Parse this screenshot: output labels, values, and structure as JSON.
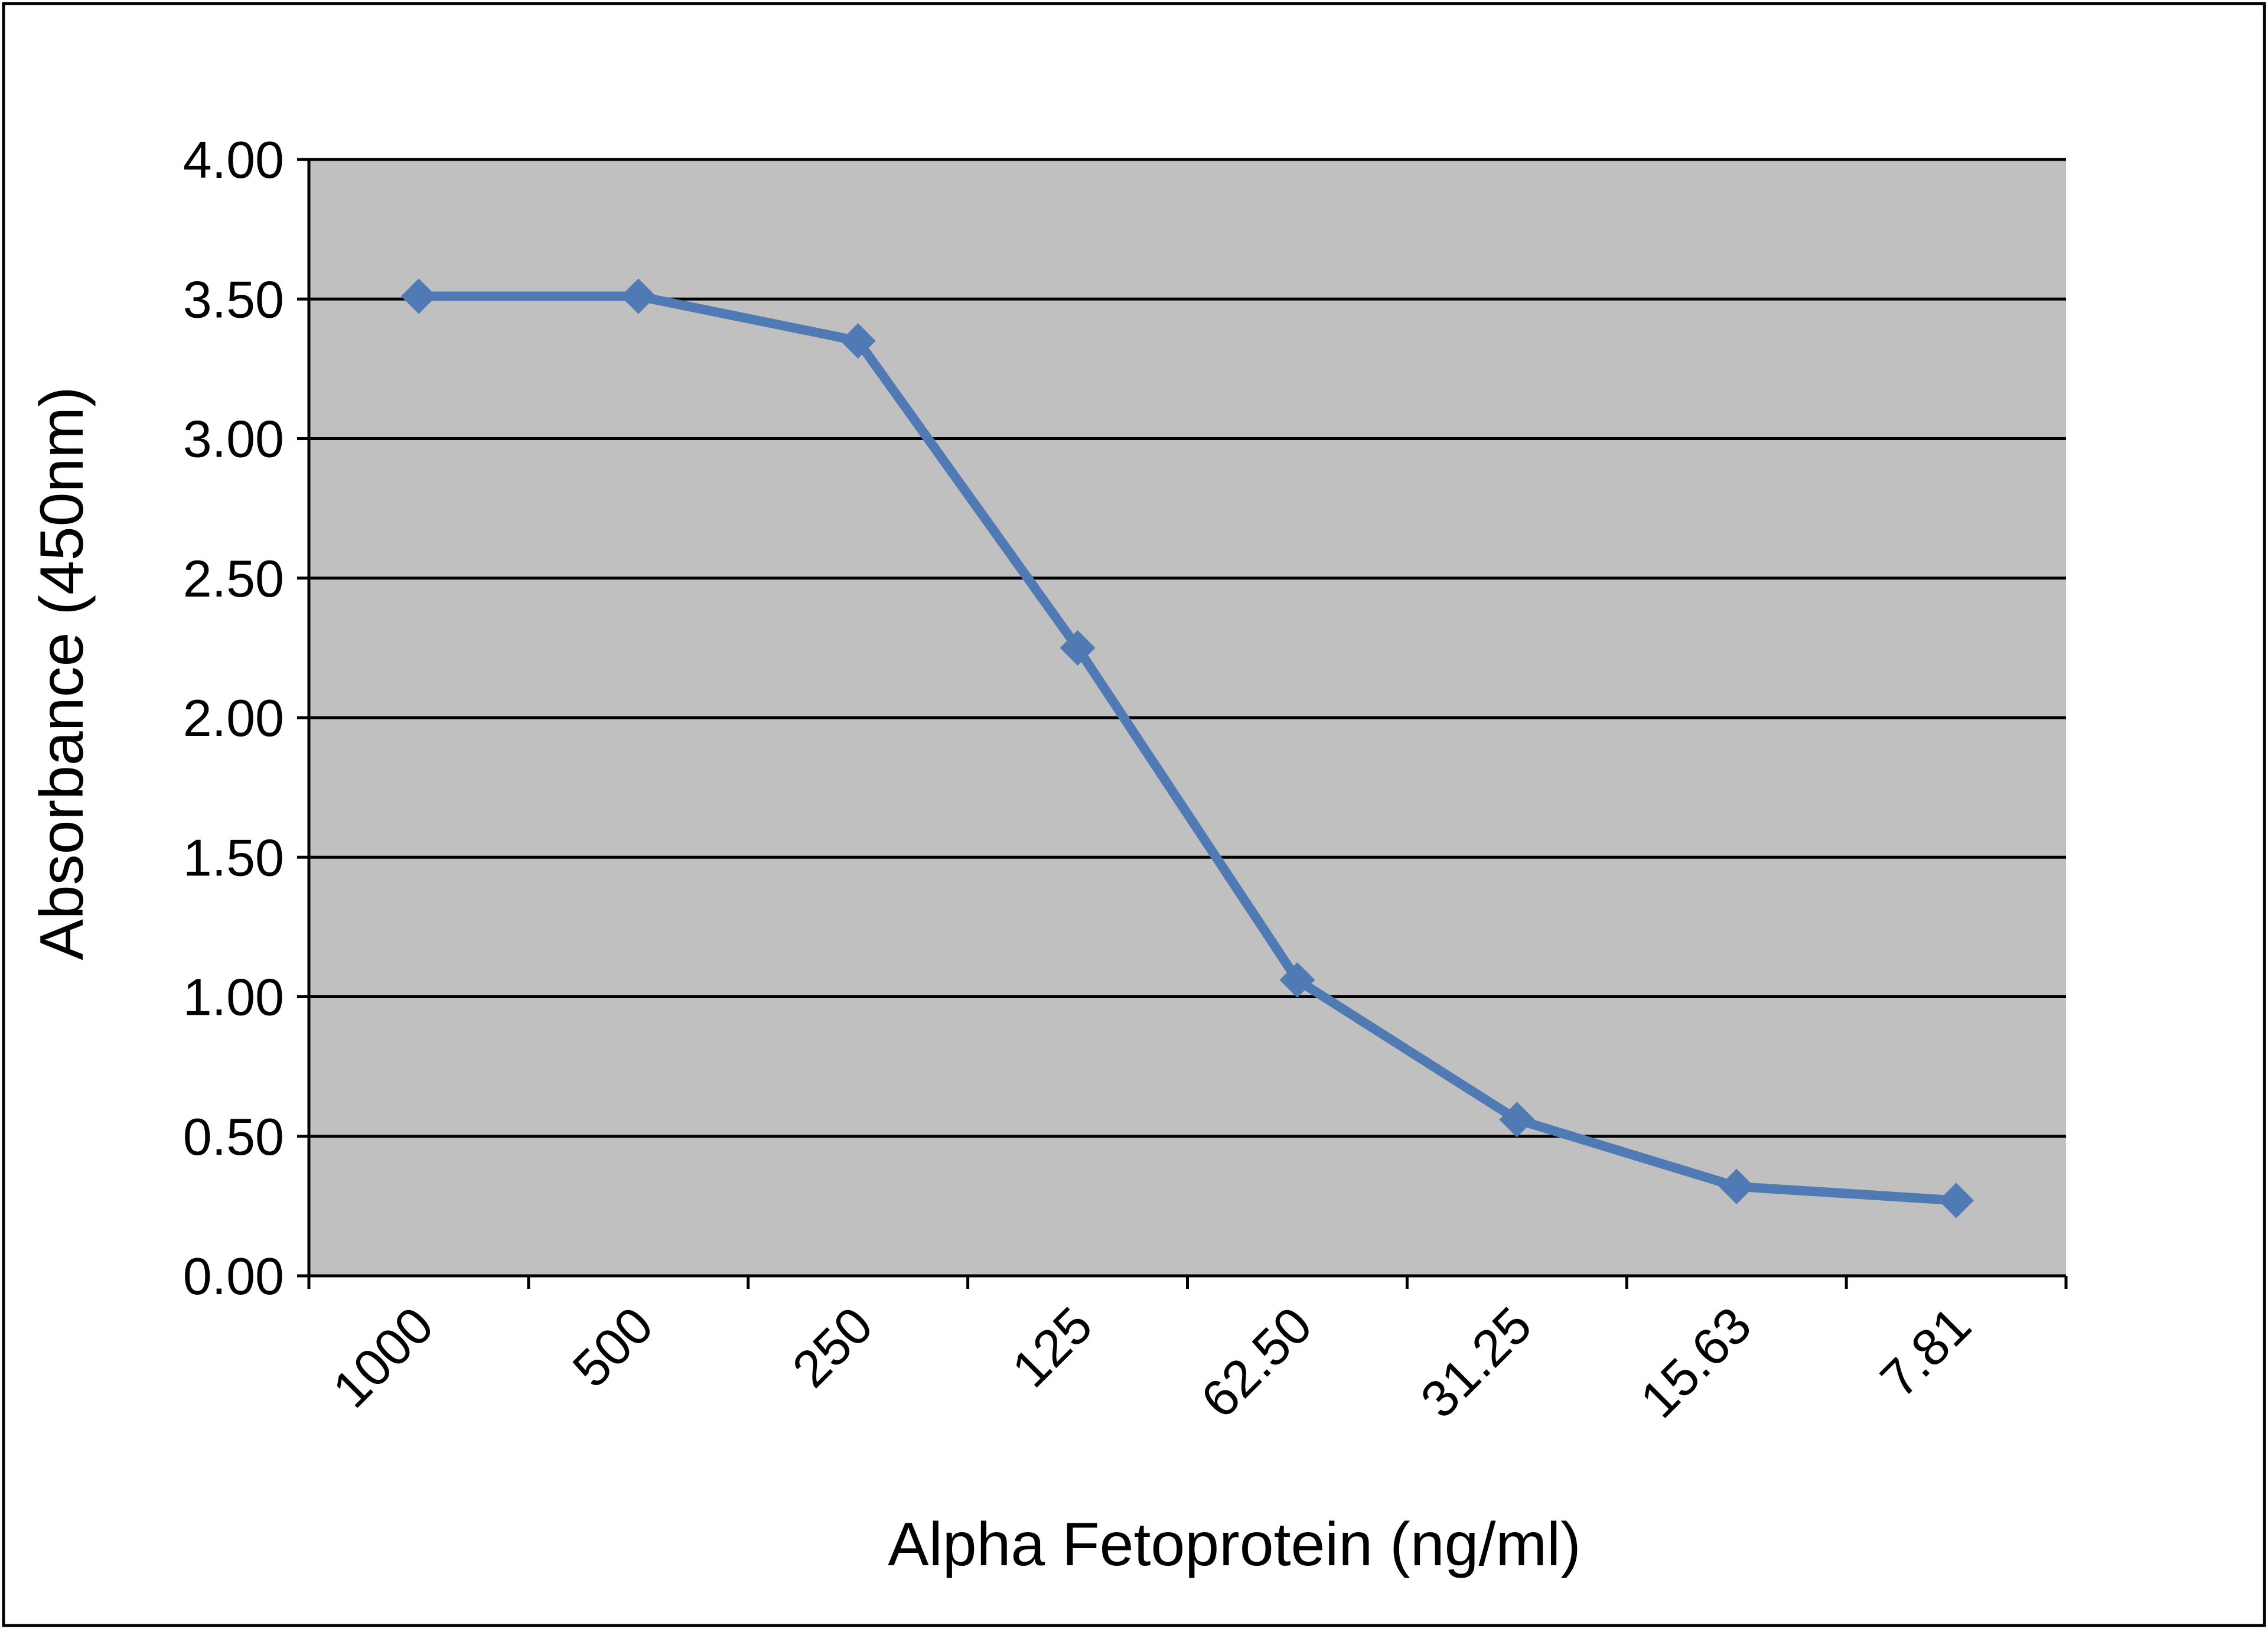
{
  "chart_data": {
    "type": "line",
    "title": "",
    "xlabel": "Alpha Fetoprotein (ng/ml)",
    "ylabel": "Absorbance (450nm)",
    "categories": [
      "1000",
      "500",
      "250",
      "125",
      "62.50",
      "31.25",
      "15.63",
      "7.81"
    ],
    "series": [
      {
        "values": [
          3.51,
          3.51,
          3.35,
          2.25,
          1.06,
          0.56,
          0.32,
          0.27
        ],
        "color": "#4f7ab3",
        "marker": "diamond"
      }
    ],
    "ylim": [
      0,
      4
    ],
    "yticks": [
      "0.00",
      "0.50",
      "1.00",
      "1.50",
      "2.00",
      "2.50",
      "3.00",
      "3.50",
      "4.00"
    ],
    "grid": true,
    "legend": "none",
    "plot_background": "#c0c0c0",
    "gridline_color": "#000000"
  }
}
